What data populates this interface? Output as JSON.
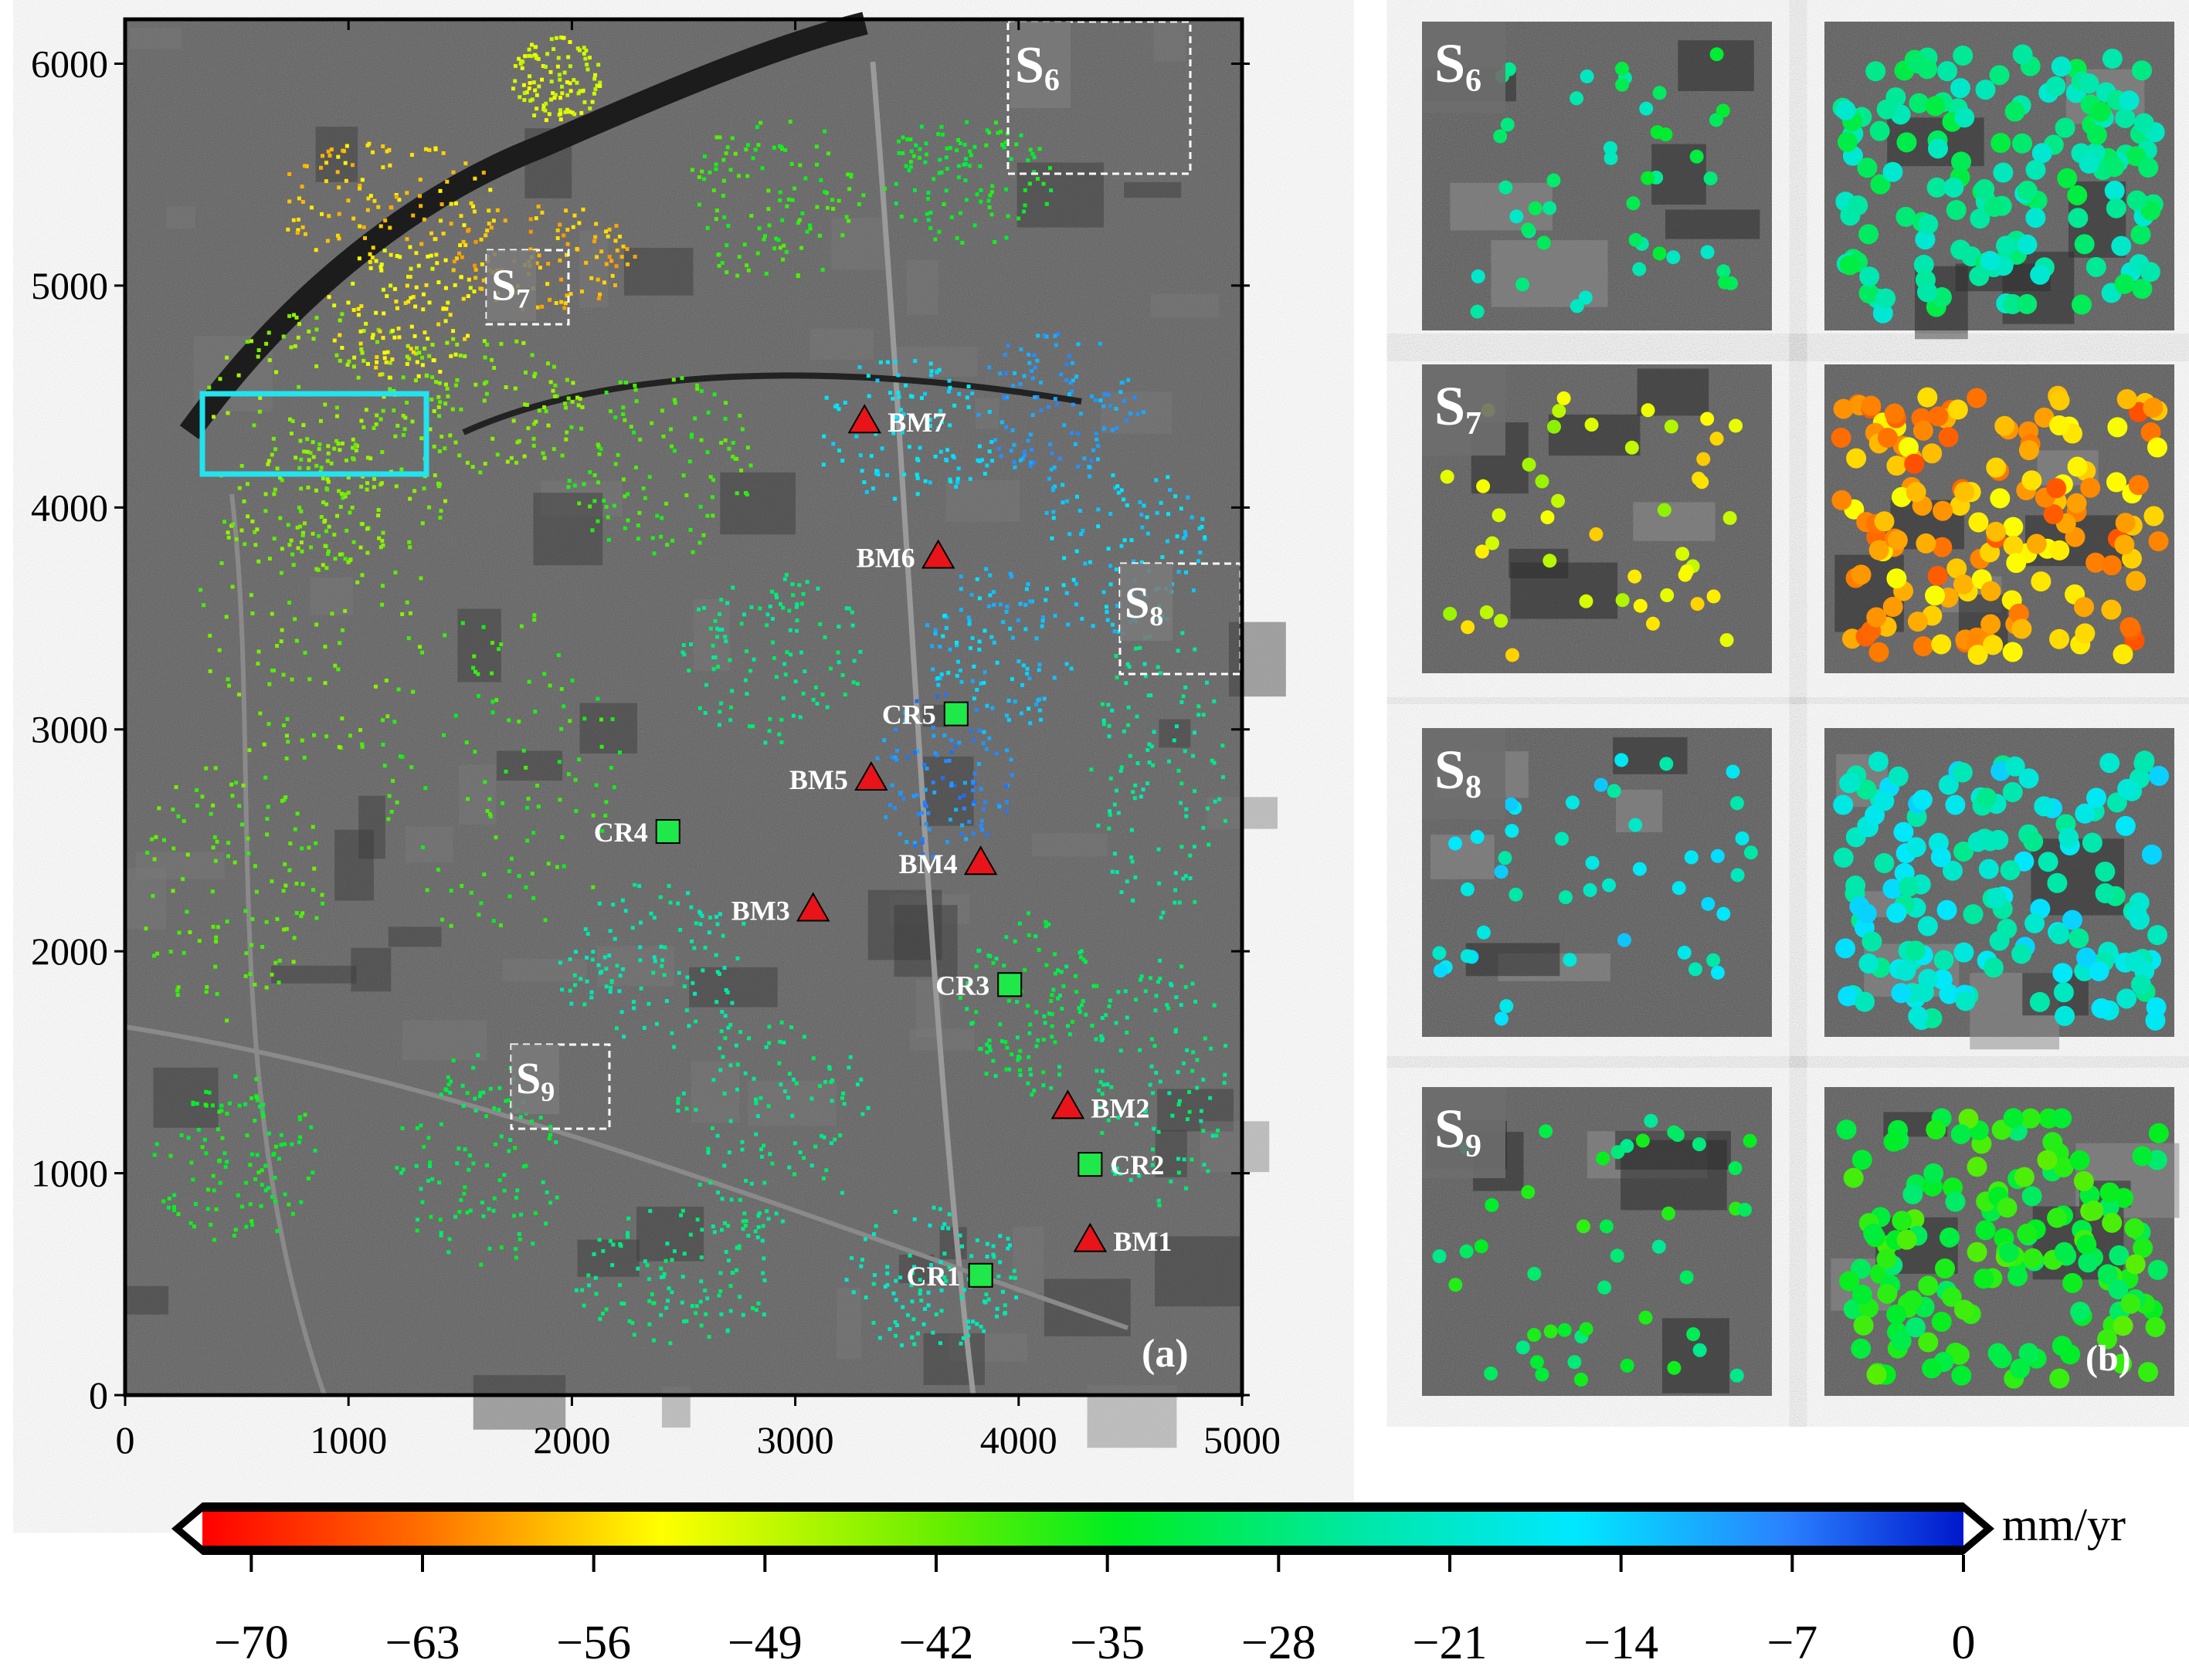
{
  "figure": {
    "panel_a_label": "(a)",
    "panel_b_label": "(b)",
    "x_ticks": [
      0,
      1000,
      2000,
      3000,
      4000,
      5000
    ],
    "y_ticks": [
      0,
      1000,
      2000,
      3000,
      4000,
      5000,
      6000
    ],
    "x_range": [
      0,
      5000
    ],
    "y_range": [
      0,
      6200
    ]
  },
  "benchmarks": [
    {
      "label": "BM1",
      "x": 4320,
      "y": 700
    },
    {
      "label": "BM2",
      "x": 4220,
      "y": 1300
    },
    {
      "label": "BM3",
      "x": 3080,
      "y": 2190
    },
    {
      "label": "BM4",
      "x": 3830,
      "y": 2400
    },
    {
      "label": "BM5",
      "x": 3340,
      "y": 2780
    },
    {
      "label": "BM6",
      "x": 3640,
      "y": 3780
    },
    {
      "label": "BM7",
      "x": 3310,
      "y": 4390
    }
  ],
  "corner_reflectors": [
    {
      "label": "CR1",
      "x": 3830,
      "y": 540
    },
    {
      "label": "CR2",
      "x": 4320,
      "y": 1040
    },
    {
      "label": "CR3",
      "x": 3960,
      "y": 1850
    },
    {
      "label": "CR4",
      "x": 2430,
      "y": 2540
    },
    {
      "label": "CR5",
      "x": 3720,
      "y": 3070
    }
  ],
  "subsets": [
    {
      "main": "S",
      "sub": "6"
    },
    {
      "main": "S",
      "sub": "7"
    },
    {
      "main": "S",
      "sub": "8"
    },
    {
      "main": "S",
      "sub": "9"
    }
  ],
  "colorbar": {
    "unit": "mm/yr",
    "ticks": [
      "−70",
      "−63",
      "−56",
      "−49",
      "−42",
      "−35",
      "−28",
      "−21",
      "−14",
      "−7",
      "0"
    ],
    "min": -72,
    "max": 0
  },
  "colors": {
    "benchmark": "#e8141a",
    "reflector": "#1fe84a",
    "highlight_box": "#22e3ee",
    "subset_box": "#ffffff",
    "map_background": "#5d5d5d"
  }
}
